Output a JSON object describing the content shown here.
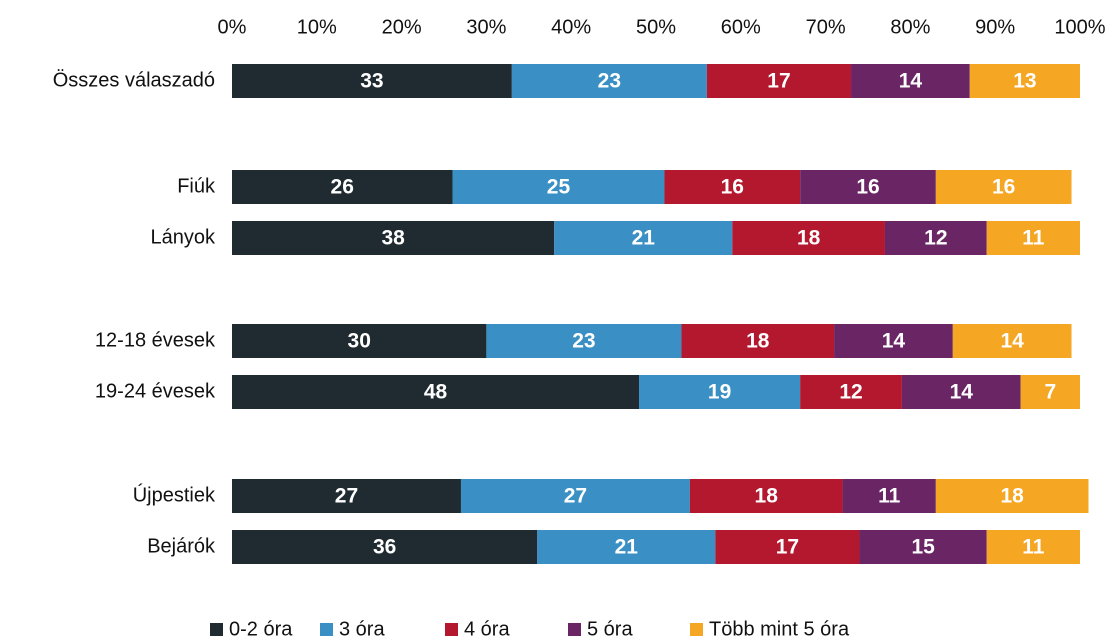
{
  "chart_data": {
    "type": "stacked-bar-horizontal",
    "categories": [
      "Összes válaszadó",
      "Fiúk",
      "Lányok",
      "12-18 évesek",
      "19-24 évesek",
      "Újpestiek",
      "Bejárók"
    ],
    "series": [
      {
        "name": "0-2 óra",
        "color": "#1f2b31",
        "values": [
          33,
          26,
          38,
          30,
          48,
          27,
          36
        ]
      },
      {
        "name": "3 óra",
        "color": "#3a8fc4",
        "values": [
          23,
          25,
          21,
          23,
          19,
          27,
          21
        ]
      },
      {
        "name": "4 óra",
        "color": "#b3182f",
        "values": [
          17,
          16,
          18,
          18,
          12,
          18,
          17
        ]
      },
      {
        "name": "5 óra",
        "color": "#6a2565",
        "values": [
          14,
          16,
          12,
          14,
          14,
          11,
          15
        ]
      },
      {
        "name": "Több mint 5 óra",
        "color": "#f5a623",
        "values": [
          13,
          16,
          11,
          14,
          7,
          18,
          11
        ]
      }
    ],
    "xlim": [
      0,
      100
    ],
    "xticks": [
      {
        "value": 0,
        "label": "0%"
      },
      {
        "value": 10,
        "label": "10%"
      },
      {
        "value": 20,
        "label": "20%"
      },
      {
        "value": 30,
        "label": "30%"
      },
      {
        "value": 40,
        "label": "40%"
      },
      {
        "value": 50,
        "label": "50%"
      },
      {
        "value": 60,
        "label": "60%"
      },
      {
        "value": 70,
        "label": "70%"
      },
      {
        "value": 80,
        "label": "80%"
      },
      {
        "value": 90,
        "label": "90%"
      },
      {
        "value": 100,
        "label": "100%"
      }
    ],
    "legend": "bottom"
  }
}
